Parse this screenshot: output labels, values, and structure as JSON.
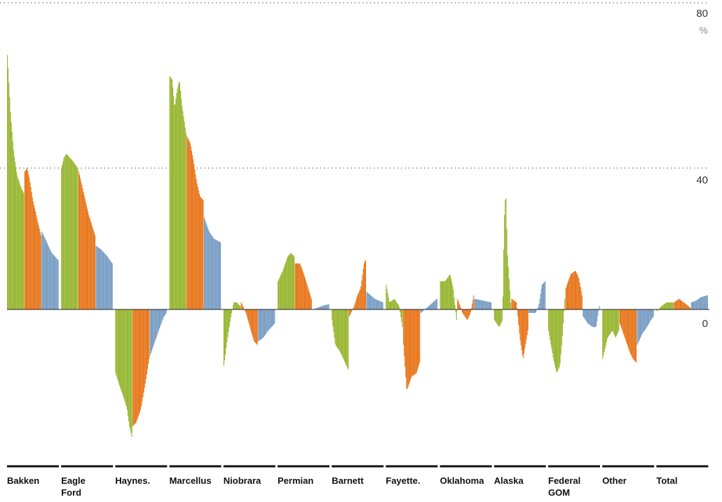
{
  "chart_data": {
    "type": "bar",
    "ylim": [
      -80,
      80
    ],
    "y_ticks": [
      {
        "value": 80,
        "label": "80"
      },
      {
        "value": 40,
        "label": "40"
      },
      {
        "value": 0,
        "label": "0"
      }
    ],
    "y_unit": "%",
    "grid": {
      "dotted_lines_at": [
        80,
        40
      ],
      "solid_baseline": 0
    },
    "colors": {
      "green": "#9ab735",
      "orange": "#e8781e",
      "blue": "#7a9fc5"
    },
    "categories": [
      {
        "name": "Bakken",
        "label_lines": [
          "Bakken"
        ],
        "segments": [
          {
            "color": "green",
            "points": [
              [
                0,
                72
              ],
              [
                0.05,
                68
              ],
              [
                0.2,
                55
              ],
              [
                0.4,
                44
              ],
              [
                0.6,
                38
              ],
              [
                0.8,
                35
              ],
              [
                1,
                33
              ]
            ]
          },
          {
            "color": "orange",
            "points": [
              [
                0,
                39
              ],
              [
                0.15,
                40
              ],
              [
                0.3,
                37
              ],
              [
                0.5,
                31
              ],
              [
                0.7,
                27
              ],
              [
                0.85,
                24
              ],
              [
                1,
                21
              ]
            ]
          },
          {
            "color": "blue",
            "points": [
              [
                0,
                22
              ],
              [
                0.3,
                19
              ],
              [
                0.6,
                16
              ],
              [
                1,
                14
              ]
            ]
          }
        ]
      },
      {
        "name": "Eagle Ford",
        "label_lines": [
          "Eagle",
          "Ford"
        ],
        "segments": [
          {
            "color": "green",
            "points": [
              [
                0,
                40
              ],
              [
                0.15,
                43
              ],
              [
                0.3,
                44
              ],
              [
                0.5,
                43
              ],
              [
                0.7,
                42
              ],
              [
                1,
                40
              ]
            ]
          },
          {
            "color": "orange",
            "points": [
              [
                0,
                39
              ],
              [
                0.2,
                35
              ],
              [
                0.4,
                31
              ],
              [
                0.6,
                27
              ],
              [
                0.8,
                24
              ],
              [
                1,
                21
              ]
            ]
          },
          {
            "color": "blue",
            "points": [
              [
                0,
                18
              ],
              [
                0.3,
                17
              ],
              [
                0.7,
                15
              ],
              [
                1,
                13
              ]
            ]
          }
        ]
      },
      {
        "name": "Haynes.",
        "label_lines": [
          "Haynes."
        ],
        "segments": [
          {
            "color": "green",
            "points": [
              [
                0,
                -18
              ],
              [
                0.2,
                -21
              ],
              [
                0.5,
                -25
              ],
              [
                0.7,
                -28
              ],
              [
                0.85,
                -33
              ],
              [
                1,
                -36
              ]
            ]
          },
          {
            "color": "orange",
            "points": [
              [
                0,
                -33
              ],
              [
                0.2,
                -32
              ],
              [
                0.5,
                -28
              ],
              [
                0.8,
                -20
              ],
              [
                1,
                -14
              ]
            ]
          },
          {
            "color": "blue",
            "points": [
              [
                0,
                -13
              ],
              [
                0.3,
                -9
              ],
              [
                0.6,
                -5
              ],
              [
                0.85,
                -2
              ],
              [
                1,
                -1
              ]
            ]
          }
        ]
      },
      {
        "name": "Marcellus",
        "label_lines": [
          "Marcellus"
        ],
        "segments": [
          {
            "color": "green",
            "points": [
              [
                0,
                66
              ],
              [
                0.15,
                65
              ],
              [
                0.3,
                57
              ],
              [
                0.45,
                62
              ],
              [
                0.6,
                65
              ],
              [
                0.75,
                58
              ],
              [
                1,
                50
              ]
            ]
          },
          {
            "color": "orange",
            "points": [
              [
                0,
                49
              ],
              [
                0.2,
                47
              ],
              [
                0.4,
                42
              ],
              [
                0.6,
                36
              ],
              [
                0.8,
                32
              ],
              [
                1,
                31
              ]
            ]
          },
          {
            "color": "blue",
            "points": [
              [
                0,
                26
              ],
              [
                0.3,
                22
              ],
              [
                0.6,
                20
              ],
              [
                1,
                19
              ]
            ]
          }
        ]
      },
      {
        "name": "Niobrara",
        "label_lines": [
          "Niobrara"
        ],
        "segments": [
          {
            "color": "green",
            "points": [
              [
                0,
                -16
              ],
              [
                0.2,
                -9
              ],
              [
                0.4,
                -3
              ],
              [
                0.6,
                2
              ],
              [
                0.8,
                2
              ],
              [
                1,
                1
              ]
            ]
          },
          {
            "color": "orange",
            "points": [
              [
                0,
                2
              ],
              [
                0.3,
                -1
              ],
              [
                0.6,
                -6
              ],
              [
                0.8,
                -9
              ],
              [
                1,
                -10
              ]
            ]
          },
          {
            "color": "blue",
            "points": [
              [
                0,
                -9
              ],
              [
                0.3,
                -8
              ],
              [
                0.6,
                -6
              ],
              [
                1,
                -4
              ]
            ]
          }
        ]
      },
      {
        "name": "Permian",
        "label_lines": [
          "Permian"
        ],
        "segments": [
          {
            "color": "green",
            "points": [
              [
                0,
                8
              ],
              [
                0.3,
                11
              ],
              [
                0.6,
                15
              ],
              [
                0.8,
                16
              ],
              [
                1,
                15
              ]
            ]
          },
          {
            "color": "orange",
            "points": [
              [
                0,
                13
              ],
              [
                0.3,
                13
              ],
              [
                0.6,
                9
              ],
              [
                1,
                3
              ]
            ]
          },
          {
            "color": "blue",
            "points": [
              [
                0,
                0
              ],
              [
                0.3,
                0.5
              ],
              [
                0.6,
                1
              ],
              [
                1,
                1.5
              ]
            ]
          }
        ]
      },
      {
        "name": "Barnett",
        "label_lines": [
          "Barnett"
        ],
        "segments": [
          {
            "color": "green",
            "points": [
              [
                0,
                -3
              ],
              [
                0.2,
                -10
              ],
              [
                0.5,
                -12
              ],
              [
                0.8,
                -15
              ],
              [
                1,
                -17
              ]
            ]
          },
          {
            "color": "orange",
            "points": [
              [
                0,
                -2
              ],
              [
                0.3,
                1
              ],
              [
                0.5,
                4
              ],
              [
                0.7,
                6
              ],
              [
                0.9,
                13
              ],
              [
                1,
                14
              ]
            ]
          },
          {
            "color": "blue",
            "points": [
              [
                0,
                5
              ],
              [
                0.5,
                3
              ],
              [
                1,
                2
              ]
            ]
          }
        ]
      },
      {
        "name": "Fayette.",
        "label_lines": [
          "Fayette."
        ],
        "segments": [
          {
            "color": "green",
            "points": [
              [
                0,
                7
              ],
              [
                0.2,
                2
              ],
              [
                0.5,
                3
              ],
              [
                0.8,
                1
              ],
              [
                1,
                -5
              ]
            ]
          },
          {
            "color": "orange",
            "points": [
              [
                0,
                -10
              ],
              [
                0.2,
                -23
              ],
              [
                0.5,
                -19
              ],
              [
                0.8,
                -18
              ],
              [
                1,
                -15
              ]
            ]
          },
          {
            "color": "blue",
            "points": [
              [
                0,
                -1
              ],
              [
                0.5,
                1
              ],
              [
                1,
                3
              ]
            ]
          }
        ]
      },
      {
        "name": "Oklahoma",
        "label_lines": [
          "Oklahoma"
        ],
        "segments": [
          {
            "color": "green",
            "points": [
              [
                0,
                8
              ],
              [
                0.3,
                8
              ],
              [
                0.6,
                10
              ],
              [
                0.8,
                6
              ],
              [
                1,
                -3
              ]
            ]
          },
          {
            "color": "orange",
            "points": [
              [
                0,
                3
              ],
              [
                0.3,
                -1
              ],
              [
                0.6,
                -3
              ],
              [
                0.8,
                -1
              ],
              [
                1,
                4
              ]
            ]
          },
          {
            "color": "blue",
            "points": [
              [
                0,
                3
              ],
              [
                1,
                2
              ]
            ]
          }
        ]
      },
      {
        "name": "Alaska",
        "label_lines": [
          "Alaska"
        ],
        "segments": [
          {
            "color": "green",
            "points": [
              [
                0,
                -3
              ],
              [
                0.3,
                -5
              ],
              [
                0.5,
                -3
              ],
              [
                0.6,
                25
              ],
              [
                0.7,
                34
              ],
              [
                0.8,
                16
              ],
              [
                1,
                2
              ]
            ]
          },
          {
            "color": "orange",
            "points": [
              [
                0,
                3
              ],
              [
                0.3,
                2
              ],
              [
                0.5,
                -8
              ],
              [
                0.7,
                -14
              ],
              [
                1,
                -6
              ]
            ]
          },
          {
            "color": "blue",
            "points": [
              [
                0,
                -1
              ],
              [
                0.4,
                -1
              ],
              [
                0.6,
                1
              ],
              [
                0.8,
                7
              ],
              [
                1,
                8
              ]
            ]
          }
        ]
      },
      {
        "name": "Federal GOM",
        "label_lines": [
          "Federal",
          "GOM"
        ],
        "segments": [
          {
            "color": "green",
            "points": [
              [
                0,
                -6
              ],
              [
                0.3,
                -14
              ],
              [
                0.5,
                -18
              ],
              [
                0.7,
                -16
              ],
              [
                0.85,
                -8
              ],
              [
                1,
                3
              ]
            ]
          },
          {
            "color": "orange",
            "points": [
              [
                0,
                6
              ],
              [
                0.3,
                10
              ],
              [
                0.6,
                11
              ],
              [
                0.8,
                9
              ],
              [
                1,
                4
              ]
            ]
          },
          {
            "color": "blue",
            "points": [
              [
                0,
                -2
              ],
              [
                0.3,
                -4
              ],
              [
                0.6,
                -5
              ],
              [
                0.8,
                -5
              ],
              [
                1,
                1
              ]
            ]
          }
        ]
      },
      {
        "name": "Other",
        "label_lines": [
          "Other"
        ],
        "segments": [
          {
            "color": "green",
            "points": [
              [
                0,
                -14
              ],
              [
                0.3,
                -8
              ],
              [
                0.6,
                -6
              ],
              [
                0.8,
                -8
              ],
              [
                1,
                -6
              ]
            ]
          },
          {
            "color": "orange",
            "points": [
              [
                0,
                -4
              ],
              [
                0.3,
                -8
              ],
              [
                0.6,
                -12
              ],
              [
                0.8,
                -14
              ],
              [
                1,
                -15
              ]
            ]
          },
          {
            "color": "blue",
            "points": [
              [
                0,
                -10
              ],
              [
                0.3,
                -7
              ],
              [
                0.6,
                -5
              ],
              [
                0.85,
                -3
              ],
              [
                1,
                -2
              ]
            ]
          }
        ]
      },
      {
        "name": "Total",
        "label_lines": [
          "Total"
        ],
        "segments": [
          {
            "color": "green",
            "points": [
              [
                0,
                -0.5
              ],
              [
                0.3,
                1
              ],
              [
                0.6,
                2
              ],
              [
                1,
                2
              ]
            ]
          },
          {
            "color": "orange",
            "points": [
              [
                0,
                2
              ],
              [
                0.3,
                3
              ],
              [
                0.6,
                2
              ],
              [
                1,
                0.5
              ]
            ]
          },
          {
            "color": "blue",
            "points": [
              [
                0,
                2
              ],
              [
                0.3,
                2.5
              ],
              [
                0.6,
                3.5
              ],
              [
                1,
                4
              ]
            ]
          }
        ]
      }
    ]
  }
}
